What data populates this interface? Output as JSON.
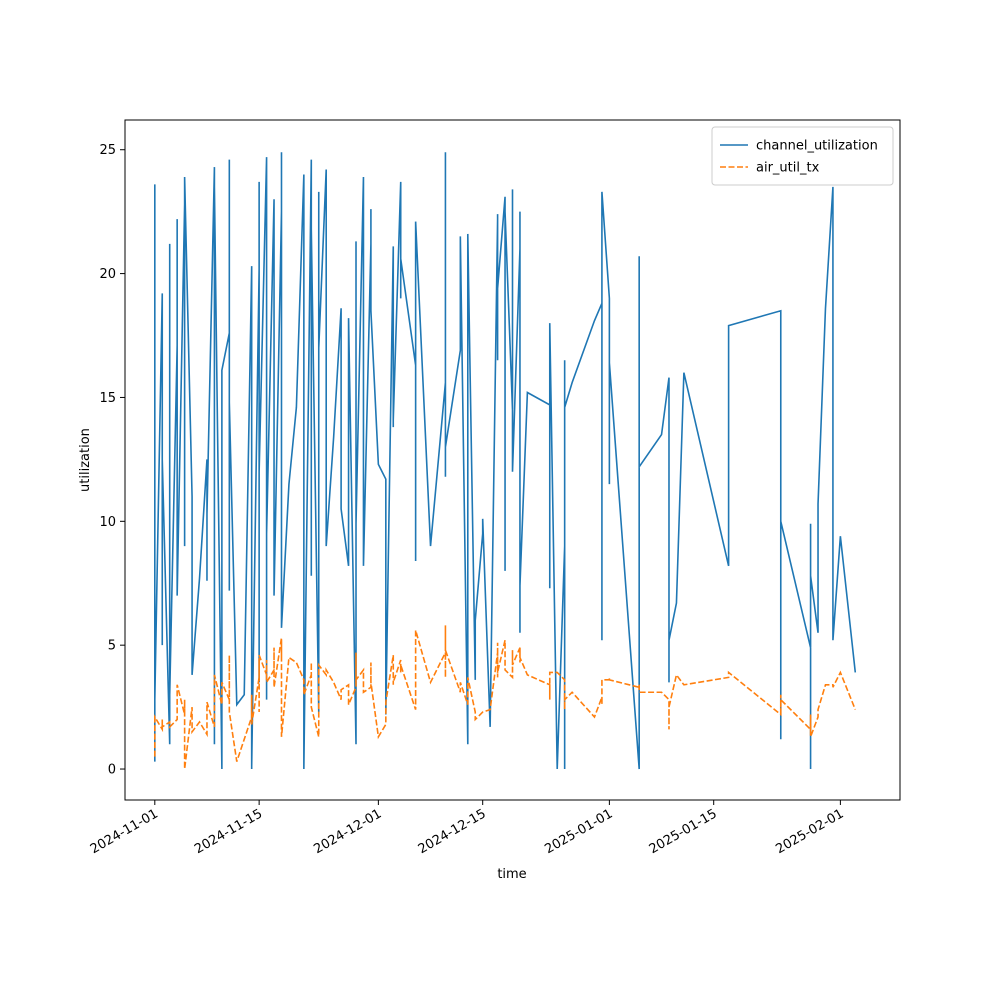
{
  "chart_data": {
    "type": "line",
    "x_label": "time",
    "y_label": "utilization",
    "x": [
      "2024-11-01",
      "2024-11-01",
      "2024-11-01",
      "2024-11-02",
      "2024-11-02",
      "2024-11-02",
      "2024-11-03",
      "2024-11-03",
      "2024-11-03",
      "2024-11-04",
      "2024-11-04",
      "2024-11-04",
      "2024-11-05",
      "2024-11-05",
      "2024-11-05",
      "2024-11-06",
      "2024-11-06",
      "2024-11-07",
      "2024-11-08",
      "2024-11-08",
      "2024-11-08",
      "2024-11-09",
      "2024-11-09",
      "2024-11-09",
      "2024-11-10",
      "2024-11-10",
      "2024-11-10",
      "2024-11-11",
      "2024-11-11",
      "2024-11-11",
      "2024-11-11",
      "2024-11-12",
      "2024-11-13",
      "2024-11-14",
      "2024-11-14",
      "2024-11-14",
      "2024-11-14",
      "2024-11-15",
      "2024-11-15",
      "2024-11-15",
      "2024-11-15",
      "2024-11-16",
      "2024-11-16",
      "2024-11-16",
      "2024-11-16",
      "2024-11-17",
      "2024-11-17",
      "2024-11-17",
      "2024-11-18",
      "2024-11-18",
      "2024-11-18",
      "2024-11-18",
      "2024-11-19",
      "2024-11-20",
      "2024-11-21",
      "2024-11-21",
      "2024-11-21",
      "2024-11-22",
      "2024-11-22",
      "2024-11-22",
      "2024-11-23",
      "2024-11-23",
      "2024-11-23",
      "2024-11-24",
      "2024-11-24",
      "2024-11-25",
      "2024-11-26",
      "2024-11-26",
      "2024-11-27",
      "2024-11-27",
      "2024-11-28",
      "2024-11-28",
      "2024-11-28",
      "2024-11-29",
      "2024-11-29",
      "2024-11-30",
      "2024-11-30",
      "2024-11-30",
      "2024-12-01",
      "2024-12-02",
      "2024-12-02",
      "2024-12-03",
      "2024-12-03",
      "2024-12-03",
      "2024-12-04",
      "2024-12-04",
      "2024-12-04",
      "2024-12-06",
      "2024-12-06",
      "2024-12-06",
      "2024-12-08",
      "2024-12-10",
      "2024-12-10",
      "2024-12-10",
      "2024-12-10",
      "2024-12-12",
      "2024-12-12",
      "2024-12-13",
      "2024-12-13",
      "2024-12-14",
      "2024-12-14",
      "2024-12-15",
      "2024-12-15",
      "2024-12-16",
      "2024-12-17",
      "2024-12-17",
      "2024-12-17",
      "2024-12-17",
      "2024-12-18",
      "2024-12-18",
      "2024-12-18",
      "2024-12-19",
      "2024-12-19",
      "2024-12-19",
      "2024-12-20",
      "2024-12-20",
      "2024-12-20",
      "2024-12-20",
      "2024-12-21",
      "2024-12-24",
      "2024-12-24",
      "2024-12-24",
      "2024-12-25",
      "2024-12-26",
      "2024-12-26",
      "2024-12-26",
      "2024-12-26",
      "2024-12-27",
      "2024-12-30",
      "2024-12-31",
      "2024-12-31",
      "2024-12-31",
      "2025-01-01",
      "2025-01-01",
      "2025-01-01",
      "2025-01-05",
      "2025-01-05",
      "2025-01-05",
      "2025-01-08",
      "2025-01-09",
      "2025-01-09",
      "2025-01-09",
      "2025-01-10",
      "2025-01-11",
      "2025-01-17",
      "2025-01-17",
      "2025-01-24",
      "2025-01-24",
      "2025-01-24",
      "2025-01-24",
      "2025-01-28",
      "2025-01-28",
      "2025-01-28",
      "2025-01-28",
      "2025-01-29",
      "2025-01-29",
      "2025-01-30",
      "2025-01-31",
      "2025-01-31",
      "2025-02-01",
      "2025-02-03"
    ],
    "series": [
      {
        "name": "channel_utilization",
        "color": "#1f77b4",
        "dash": false,
        "values": [
          0.3,
          23.6,
          2.8,
          19.2,
          5.0,
          12.5,
          1.0,
          21.2,
          3.0,
          17.1,
          22.2,
          7.0,
          22.8,
          9.0,
          23.9,
          11.0,
          3.8,
          7.7,
          12.5,
          7.6,
          10.3,
          24.3,
          1.0,
          23.5,
          0.0,
          8.7,
          16.1,
          17.6,
          24.6,
          7.2,
          14.8,
          2.6,
          3.0,
          20.3,
          0.0,
          16.2,
          0.1,
          20.2,
          3.5,
          23.7,
          12.0,
          24.7,
          2.8,
          22.0,
          9.5,
          23.0,
          18.0,
          7.0,
          22.5,
          15.0,
          24.9,
          5.7,
          11.5,
          14.6,
          24.0,
          22.6,
          0.0,
          24.6,
          7.8,
          21.8,
          2.3,
          23.3,
          17.0,
          24.2,
          9.0,
          13.4,
          18.6,
          10.5,
          8.2,
          18.2,
          1.0,
          21.3,
          9.9,
          23.9,
          8.2,
          21.2,
          22.6,
          18.5,
          12.3,
          11.7,
          2.2,
          21.1,
          13.8,
          14.1,
          23.7,
          19.0,
          20.6,
          16.3,
          8.4,
          22.1,
          9.0,
          15.6,
          11.8,
          24.9,
          13.0,
          16.9,
          21.5,
          1.0,
          21.6,
          3.6,
          6.0,
          9.5,
          10.1,
          1.7,
          22.2,
          16.5,
          22.4,
          19.4,
          23.1,
          8.0,
          22.5,
          14.5,
          23.4,
          12.0,
          21.0,
          5.5,
          22.5,
          7.4,
          15.2,
          14.7,
          7.3,
          18.0,
          0.0,
          9.0,
          0.0,
          16.5,
          14.6,
          15.6,
          18.1,
          18.8,
          5.2,
          23.3,
          19.0,
          11.5,
          16.4,
          0.0,
          20.7,
          12.2,
          13.5,
          15.8,
          3.5,
          5.2,
          6.7,
          16.0,
          8.2,
          17.9,
          18.5,
          13.3,
          1.2,
          10.0,
          4.9,
          9.9,
          0.0,
          7.8,
          5.5,
          10.7,
          18.6,
          23.5,
          5.2,
          9.4,
          3.9
        ]
      },
      {
        "name": "air_util_tx",
        "color": "#ff7f0e",
        "dash": true,
        "values": [
          0.5,
          1.8,
          2.1,
          1.6,
          2.0,
          1.7,
          1.9,
          1.8,
          1.7,
          2.0,
          2.4,
          3.4,
          2.2,
          2.8,
          0.0,
          2.5,
          1.5,
          1.9,
          1.4,
          2.0,
          2.7,
          1.7,
          2.0,
          3.8,
          2.6,
          2.9,
          3.5,
          2.8,
          4.3,
          4.6,
          2.3,
          0.3,
          1.2,
          2.1,
          3.0,
          2.5,
          1.8,
          3.7,
          4.3,
          2.3,
          4.6,
          3.8,
          4.4,
          4.1,
          3.5,
          4.0,
          4.9,
          3.3,
          5.3,
          4.5,
          5.2,
          1.3,
          4.5,
          4.3,
          3.6,
          3.3,
          3.0,
          3.8,
          4.3,
          2.5,
          1.3,
          3.6,
          4.2,
          3.8,
          4.0,
          3.5,
          2.8,
          3.2,
          3.4,
          2.6,
          3.3,
          4.7,
          3.6,
          4.0,
          3.1,
          3.3,
          4.3,
          3.5,
          1.3,
          1.8,
          2.7,
          4.6,
          3.4,
          3.5,
          4.4,
          3.9,
          4.2,
          2.4,
          4.8,
          5.6,
          3.5,
          4.7,
          3.7,
          5.8,
          4.8,
          3.1,
          3.5,
          2.6,
          3.7,
          2.3,
          2.0,
          2.3,
          2.3,
          2.4,
          4.7,
          3.7,
          5.1,
          3.9,
          5.2,
          4.3,
          4.0,
          3.7,
          4.8,
          4.2,
          4.9,
          4.3,
          4.9,
          4.5,
          3.8,
          3.4,
          2.8,
          3.9,
          3.9,
          3.6,
          2.4,
          3.0,
          2.8,
          3.1,
          2.1,
          2.9,
          2.6,
          3.6,
          3.6,
          3.7,
          3.6,
          3.3,
          3.4,
          3.1,
          3.1,
          2.8,
          1.6,
          2.5,
          3.8,
          3.4,
          3.7,
          3.9,
          2.2,
          3.0,
          2.3,
          2.8,
          1.6,
          1.5,
          2.2,
          1.3,
          2.1,
          2.4,
          3.4,
          3.4,
          3.3,
          3.9,
          2.4
        ]
      }
    ],
    "xlim": [
      "2024-10-28",
      "2025-02-09"
    ],
    "xticks": [
      "2024-11-01",
      "2024-11-15",
      "2024-12-01",
      "2024-12-15",
      "2025-01-01",
      "2025-01-15",
      "2025-02-01"
    ],
    "ylim": [
      -1.25,
      26.2
    ],
    "yticks": [
      0,
      5,
      10,
      15,
      20,
      25
    ],
    "legend": "upper right",
    "grid": false
  }
}
